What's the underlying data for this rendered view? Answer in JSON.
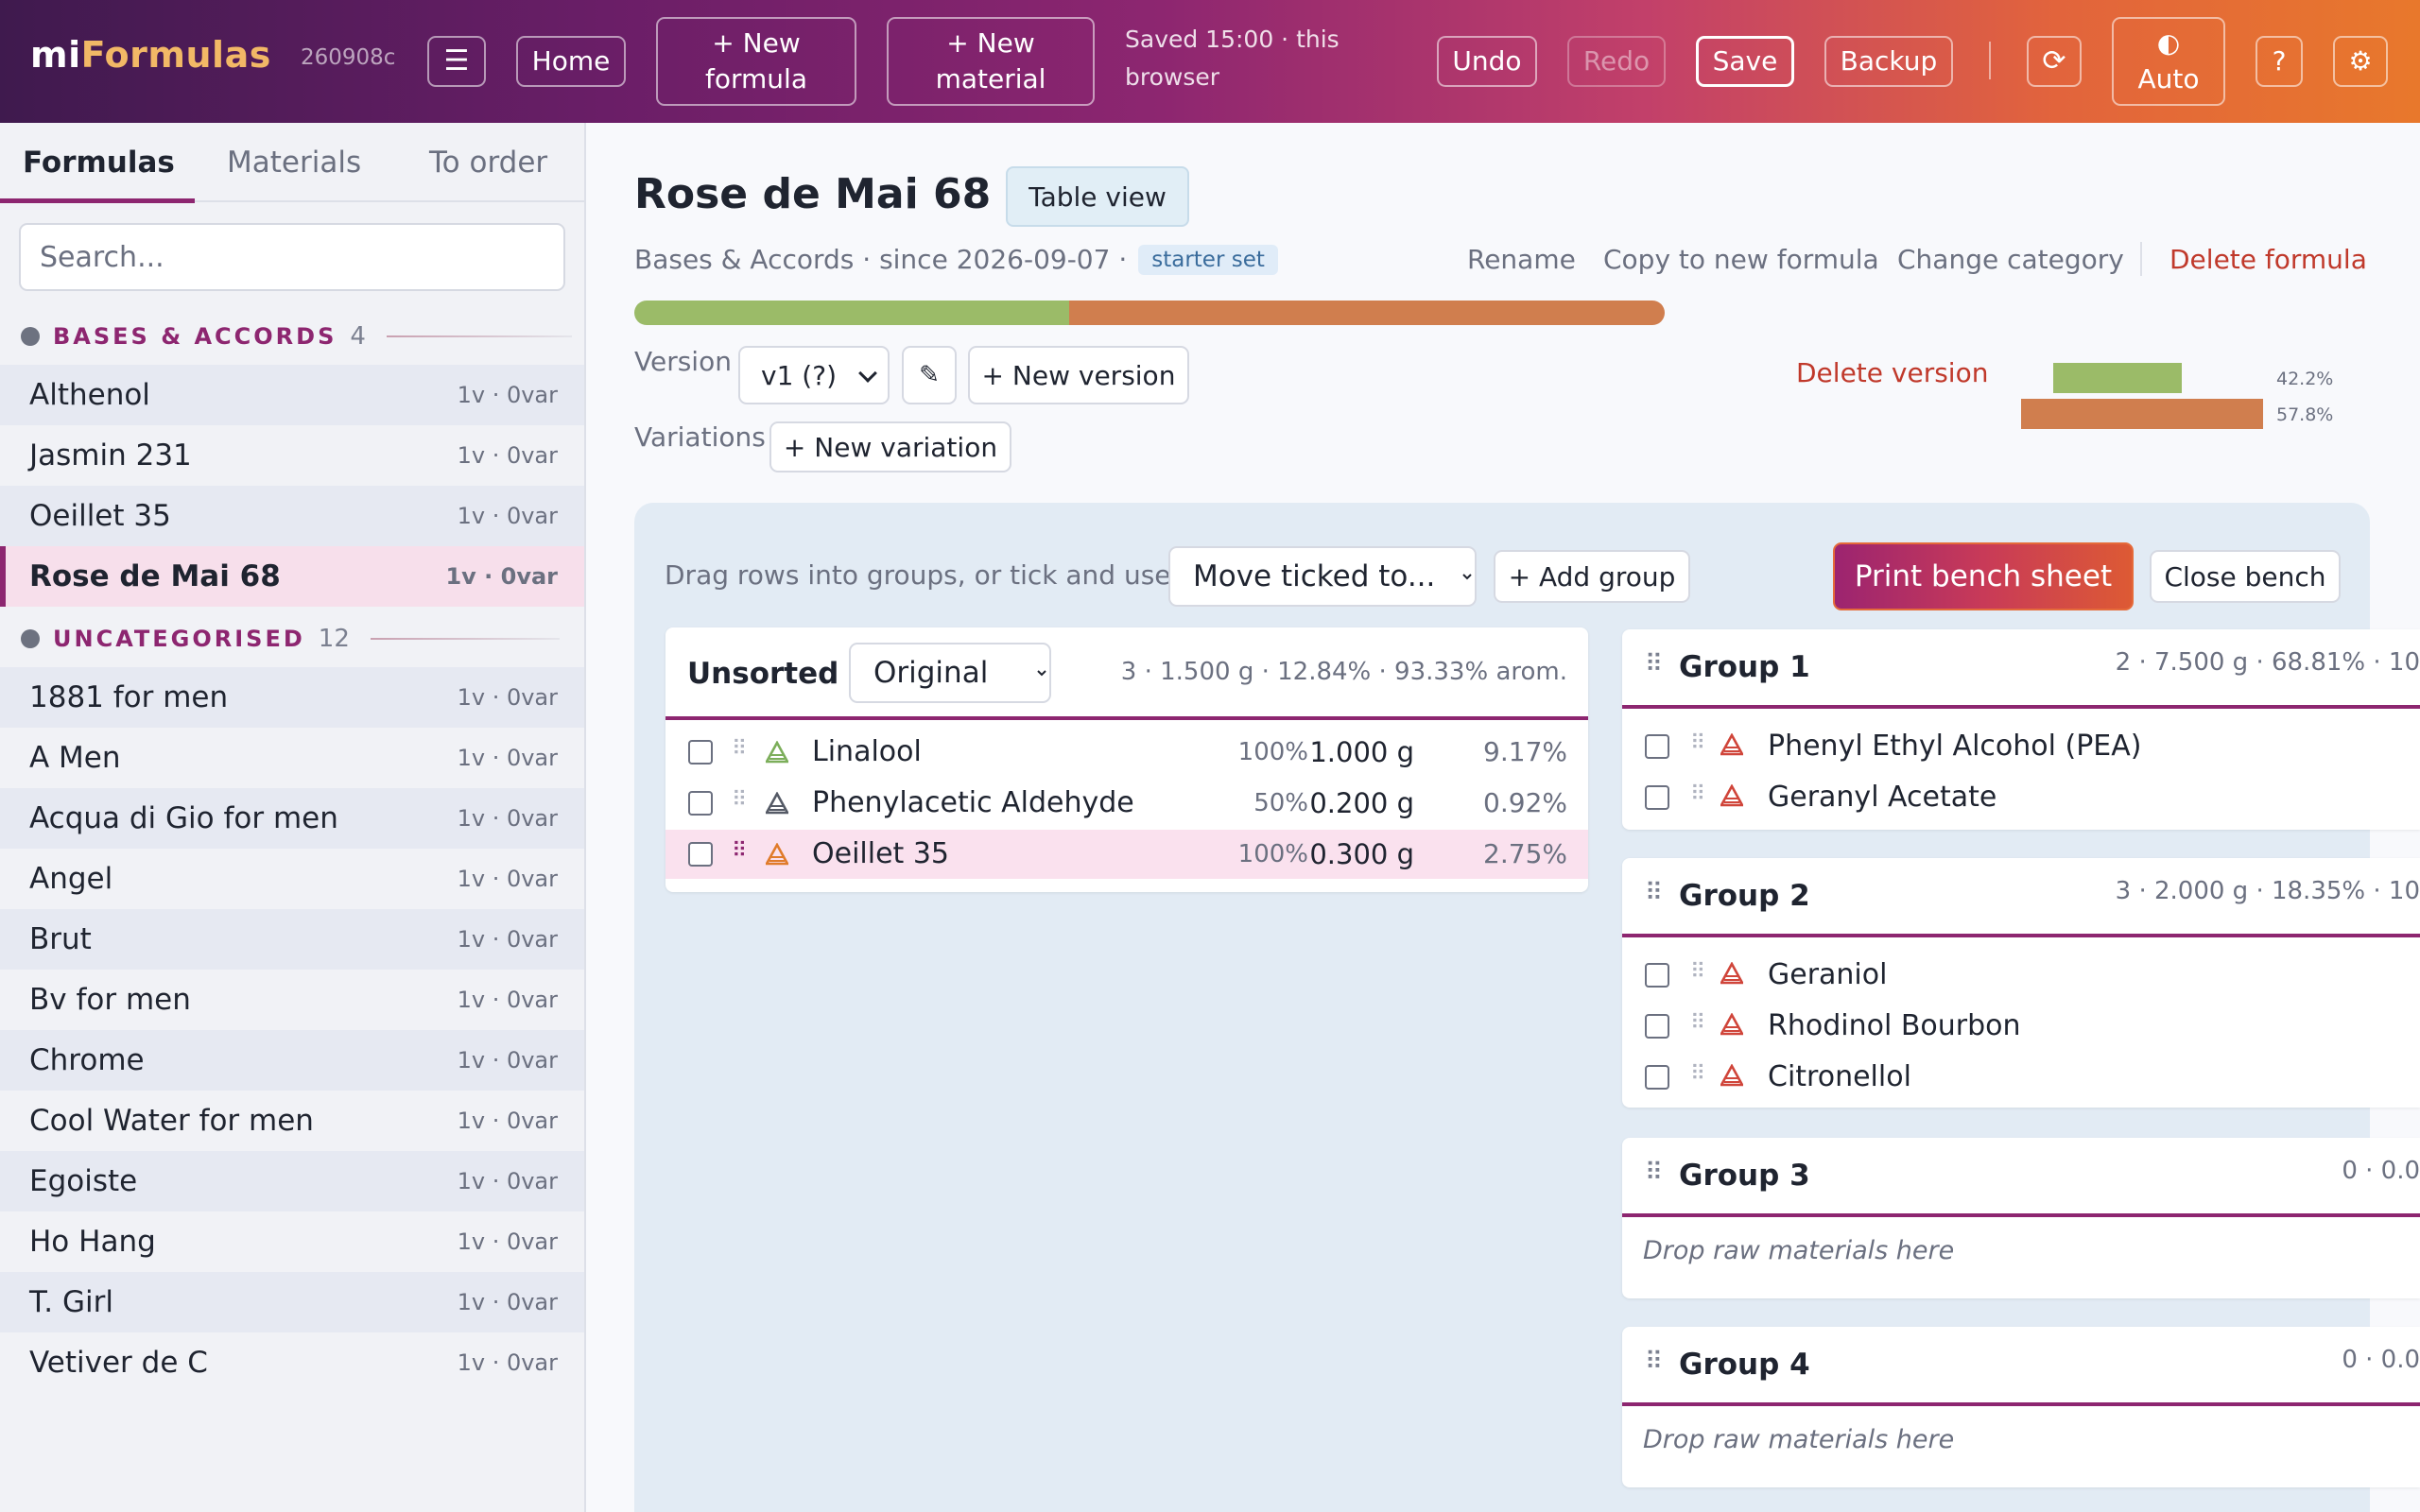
{
  "header": {
    "logo_prefix": "mi",
    "logo_suffix": "Formulas",
    "build": "260908c",
    "menu_glyph": "☰",
    "home": "Home",
    "new_formula": "+ New\nformula",
    "new_material": "+ New\nmaterial",
    "saved_status": "Saved 15:00 · this browser",
    "undo": "Undo",
    "redo": "Redo",
    "save": "Save",
    "backup": "Backup",
    "refresh_glyph": "⟳",
    "theme_glyph": "◐",
    "theme_label": "Auto",
    "help": "?",
    "settings_glyph": "⚙"
  },
  "sidebar": {
    "tabs": [
      "Formulas",
      "Materials",
      "To order"
    ],
    "search_placeholder": "Search...",
    "groups": [
      {
        "name": "BASES & ACCORDS",
        "count": "4",
        "items": [
          {
            "name": "Althenol",
            "meta": "1v · 0var"
          },
          {
            "name": "Jasmin 231",
            "meta": "1v · 0var"
          },
          {
            "name": "Oeillet 35",
            "meta": "1v · 0var"
          },
          {
            "name": "Rose de Mai 68",
            "meta": "1v · 0var",
            "active": true
          }
        ]
      },
      {
        "name": "UNCATEGORISED",
        "count": "12",
        "items": [
          {
            "name": "1881 for men",
            "meta": "1v · 0var"
          },
          {
            "name": "A Men",
            "meta": "1v · 0var"
          },
          {
            "name": "Acqua di Gio for men",
            "meta": "1v · 0var"
          },
          {
            "name": "Angel",
            "meta": "1v · 0var"
          },
          {
            "name": "Brut",
            "meta": "1v · 0var"
          },
          {
            "name": "Bv for men",
            "meta": "1v · 0var"
          },
          {
            "name": "Chrome",
            "meta": "1v · 0var"
          },
          {
            "name": "Cool Water for men",
            "meta": "1v · 0var"
          },
          {
            "name": "Egoiste",
            "meta": "1v · 0var"
          },
          {
            "name": "Ho Hang",
            "meta": "1v · 0var"
          },
          {
            "name": "T. Girl",
            "meta": "1v · 0var"
          },
          {
            "name": "Vetiver de C",
            "meta": "1v · 0var"
          }
        ]
      }
    ]
  },
  "formula": {
    "title": "Rose de Mai 68",
    "table_view": "Table view",
    "subline": "Bases & Accords · since 2026-09-07 ·",
    "tag": "starter set",
    "actions": {
      "rename": "Rename",
      "copy": "Copy to new formula",
      "category": "Change category",
      "delete": "Delete formula"
    },
    "ratio_green": 42.2,
    "ratio_orange": 57.8,
    "color_green": "#9bbb68",
    "color_orange": "#d07e4e",
    "version_label": "Version",
    "version_value": "v1 (?)",
    "edit_glyph": "✎",
    "new_version": "+ New version",
    "variations_label": "Variations",
    "new_variation": "+ New variation",
    "delete_version": "Delete version",
    "mini_green_label": "42.2%",
    "mini_orange_label": "57.8%"
  },
  "bench": {
    "hint": "Drag rows into groups, or tick and use:",
    "move_option": "Move ticked to...",
    "add_group": "+ Add group",
    "print": "Print bench sheet",
    "close": "Close bench",
    "handle_glyph": "⠿",
    "drop_text": "Drop raw materials here",
    "unsorted": {
      "title": "Unsorted",
      "sort_option": "Original",
      "stats": "3 · 1.500 g · 12.84% · 93.33% arom.",
      "rows": [
        {
          "name": "Linalool",
          "dilution": "100%",
          "weight": "1.000 g",
          "pct": "9.17%",
          "tri": "#7cae5a"
        },
        {
          "name": "Phenylacetic Aldehyde",
          "dilution": "50%",
          "weight": "0.200 g",
          "pct": "0.92%",
          "tri": "#555a66"
        },
        {
          "name": "Oeillet 35",
          "dilution": "100%",
          "weight": "0.300 g",
          "pct": "2.75%",
          "tri": "#e07b2a",
          "highlight": true
        }
      ]
    },
    "groups": [
      {
        "title": "Group 1",
        "stats": "2 · 7.500 g · 68.81% · 10",
        "rows": [
          "Phenyl Ethyl Alcohol (PEA)",
          "Geranyl Acetate"
        ]
      },
      {
        "title": "Group 2",
        "stats": "3 · 2.000 g · 18.35% · 10",
        "rows": [
          "Geraniol",
          "Rhodinol Bourbon",
          "Citronellol"
        ]
      },
      {
        "title": "Group 3",
        "stats": "0 · 0.0",
        "rows": []
      },
      {
        "title": "Group 4",
        "stats": "0 · 0.0",
        "rows": []
      }
    ],
    "group_tri_color": "#d0453a"
  }
}
